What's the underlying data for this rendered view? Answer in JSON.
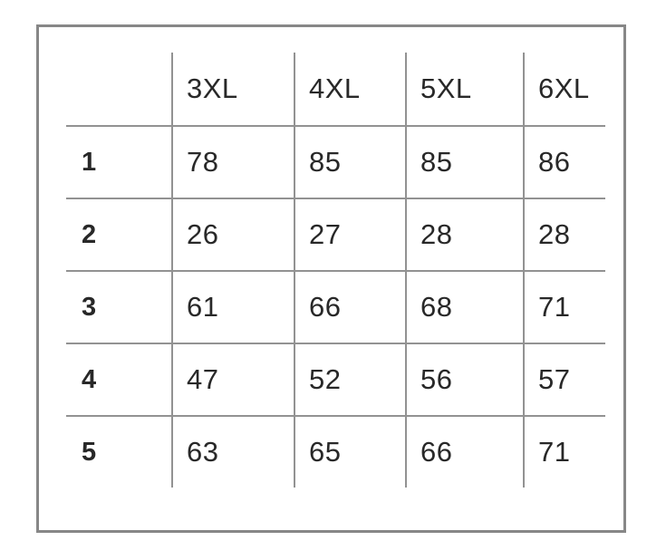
{
  "chart_data": {
    "type": "table",
    "columns": [
      "3XL",
      "4XL",
      "5XL",
      "6XL"
    ],
    "row_labels": [
      "1",
      "2",
      "3",
      "4",
      "5"
    ],
    "rows": [
      [
        78,
        85,
        85,
        86
      ],
      [
        26,
        27,
        28,
        28
      ],
      [
        61,
        66,
        68,
        71
      ],
      [
        47,
        52,
        56,
        57
      ],
      [
        63,
        65,
        66,
        71
      ]
    ],
    "layout": {
      "grid": "inner-lines-only",
      "legend": "none"
    }
  },
  "colors": {
    "frame_border": "#878787",
    "grid_line": "#929292",
    "text": "#282828",
    "background": "#ffffff"
  }
}
